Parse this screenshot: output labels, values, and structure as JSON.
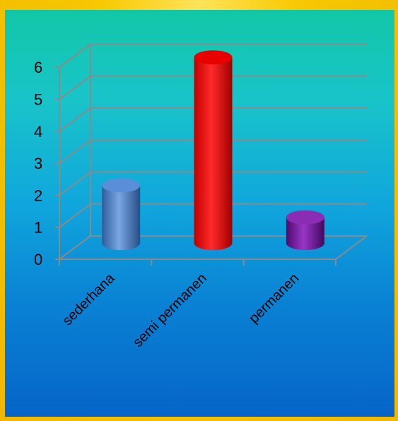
{
  "chart_data": {
    "type": "bar",
    "style": "3d-cylinder",
    "categories": [
      "sederhana",
      "semi permanen",
      "permanen"
    ],
    "values": [
      2,
      6,
      1
    ],
    "ylim": [
      0,
      6
    ],
    "yticks": [
      "0",
      "1",
      "2",
      "3",
      "4",
      "5",
      "6"
    ],
    "grid": true,
    "legend": "none",
    "colors": {
      "sederhana": "#4f7fc4",
      "semi permanen": "#ff0000",
      "permanen": "#7a1fa0",
      "grid": "#8a8a8a"
    }
  }
}
